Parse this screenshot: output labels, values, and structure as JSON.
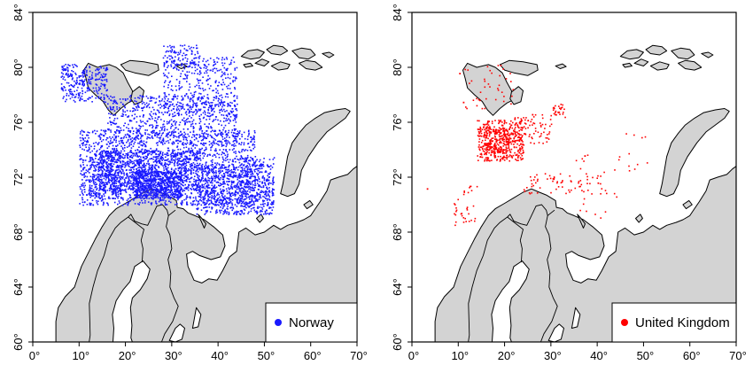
{
  "chart_data": [
    {
      "type": "scatter",
      "title": "",
      "xlabel": "",
      "ylabel": "",
      "xlim": [
        0,
        70
      ],
      "ylim": [
        60,
        84
      ],
      "xticks": [
        "0°",
        "10°",
        "20°",
        "30°",
        "40°",
        "50°",
        "60°",
        "70°"
      ],
      "yticks": [
        "60°",
        "64°",
        "68°",
        "72°",
        "76°",
        "80°",
        "84°"
      ],
      "legend": {
        "label": "Norway",
        "placement": "bottom-right"
      },
      "series": [
        {
          "name": "Norway",
          "color": "#1a1aff"
        }
      ]
    },
    {
      "type": "scatter",
      "title": "",
      "xlabel": "",
      "ylabel": "",
      "xlim": [
        0,
        70
      ],
      "ylim": [
        60,
        84
      ],
      "xticks": [
        "0°",
        "10°",
        "20°",
        "30°",
        "40°",
        "50°",
        "60°",
        "70°"
      ],
      "yticks": [
        "60°",
        "64°",
        "68°",
        "72°",
        "76°",
        "80°",
        "84°"
      ],
      "legend": {
        "label": "United Kingdom",
        "placement": "bottom-right"
      },
      "series": [
        {
          "name": "United Kingdom",
          "color": "#ff0000"
        }
      ]
    }
  ],
  "colors": {
    "land": "#d3d3d3",
    "coast": "#000000",
    "sea": "#ffffff"
  }
}
